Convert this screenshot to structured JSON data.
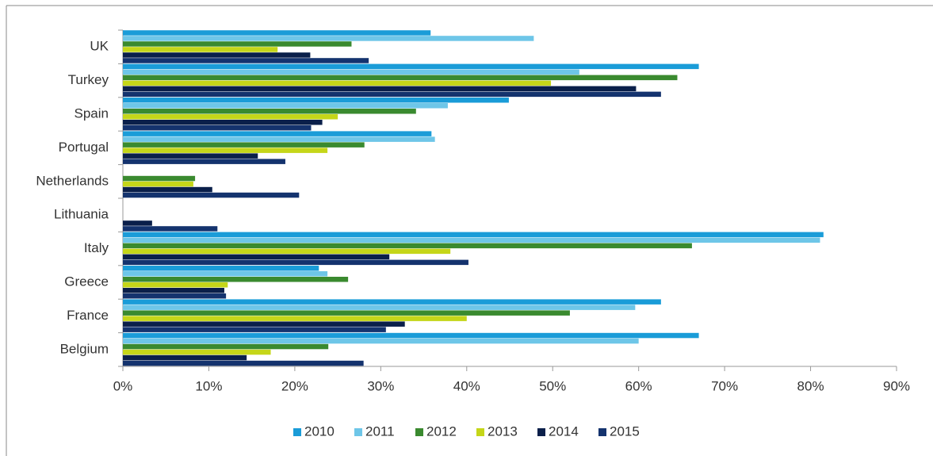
{
  "chart_data": {
    "type": "hbar",
    "categories": [
      "UK",
      "Turkey",
      "Spain",
      "Portugal",
      "Netherlands",
      "Lithuania",
      "Italy",
      "Greece",
      "France",
      "Belgium"
    ],
    "series": [
      {
        "name": "2010",
        "color": "#1a9cd8",
        "values": [
          35.8,
          67.0,
          44.9,
          35.9,
          0,
          0,
          81.5,
          22.8,
          62.6,
          67.0
        ]
      },
      {
        "name": "2011",
        "color": "#6ec6e8",
        "values": [
          47.8,
          53.1,
          37.8,
          36.3,
          0,
          0,
          81.1,
          23.8,
          59.6,
          60.0
        ]
      },
      {
        "name": "2012",
        "color": "#3a8a2f",
        "values": [
          26.6,
          64.5,
          34.1,
          28.1,
          8.4,
          0,
          66.2,
          26.2,
          52.0,
          23.9
        ]
      },
      {
        "name": "2013",
        "color": "#c5d619",
        "values": [
          18.0,
          49.8,
          25.0,
          23.8,
          8.2,
          0,
          38.1,
          12.2,
          40.0,
          17.2
        ]
      },
      {
        "name": "2014",
        "color": "#0a1f4a",
        "values": [
          21.8,
          59.7,
          23.2,
          15.7,
          10.4,
          3.4,
          31.0,
          11.8,
          32.8,
          14.4
        ]
      },
      {
        "name": "2015",
        "color": "#14336e",
        "values": [
          28.6,
          62.6,
          21.9,
          18.9,
          20.5,
          11.0,
          40.2,
          12.0,
          30.6,
          28.0
        ]
      }
    ],
    "xlim": [
      0,
      90
    ],
    "xticks": [
      {
        "value": 0,
        "label": "0%"
      },
      {
        "value": 10,
        "label": "10%"
      },
      {
        "value": 20,
        "label": "20%"
      },
      {
        "value": 30,
        "label": "30%"
      },
      {
        "value": 40,
        "label": "40%"
      },
      {
        "value": 50,
        "label": "50%"
      },
      {
        "value": 60,
        "label": "60%"
      },
      {
        "value": 70,
        "label": "70%"
      },
      {
        "value": 80,
        "label": "80%"
      },
      {
        "value": 90,
        "label": "90%"
      }
    ],
    "legend": "bottom"
  }
}
